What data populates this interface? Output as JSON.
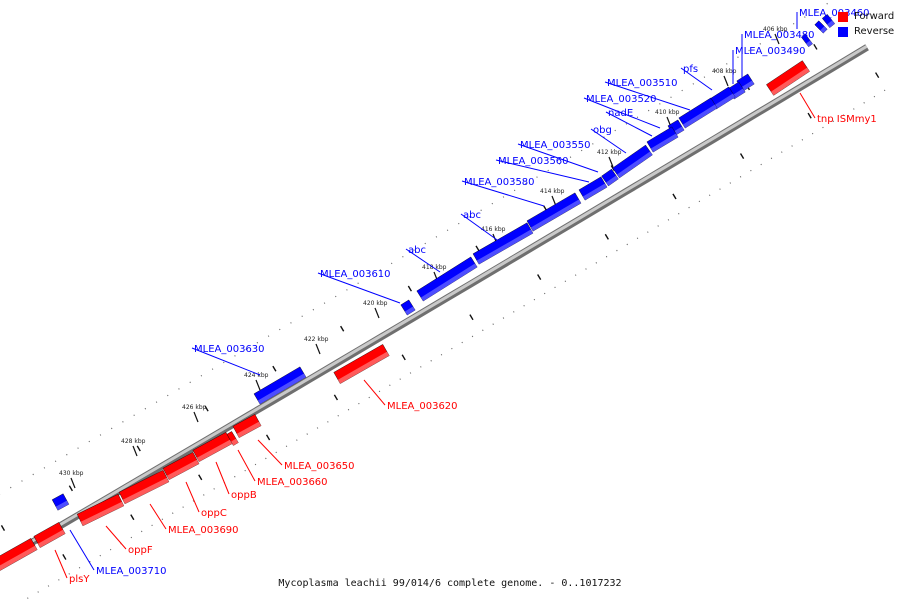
{
  "caption": "Mycoplasma leachii 99/014/6 complete genome. - 0..1017232",
  "legend": [
    {
      "label": "Forward",
      "color": "#ff0000"
    },
    {
      "label": "Reverse",
      "color": "#0000ff"
    }
  ],
  "colors": {
    "forward": "#ff0000",
    "reverse": "#0000ff",
    "backbone": "#9a9a9a"
  },
  "ticks": [
    "406 kbp",
    "408 kbp",
    "410 kbp",
    "412 kbp",
    "414 kbp",
    "416 kbp",
    "418 kbp",
    "420 kbp",
    "422 kbp",
    "424 kbp",
    "426 kbp",
    "428 kbp",
    "430 kbp"
  ],
  "forward_genes": [
    {
      "label": "tnp ISMmy1"
    },
    {
      "label": "MLEA_003620"
    },
    {
      "label": "MLEA_003650"
    },
    {
      "label": "MLEA_003660"
    },
    {
      "label": "oppB"
    },
    {
      "label": "oppC"
    },
    {
      "label": "MLEA_003690"
    },
    {
      "label": "oppF"
    },
    {
      "label": "plsY"
    }
  ],
  "reverse_genes": [
    {
      "label": "MLEA_003460"
    },
    {
      "label": "MLEA_003480"
    },
    {
      "label": "MLEA_003490"
    },
    {
      "label": "pfs"
    },
    {
      "label": "MLEA_003510"
    },
    {
      "label": "MLEA_003520"
    },
    {
      "label": "nadE"
    },
    {
      "label": "obg"
    },
    {
      "label": "MLEA_003550"
    },
    {
      "label": "MLEA_003560"
    },
    {
      "label": "MLEA_003580"
    },
    {
      "label": "abc"
    },
    {
      "label": "abc"
    },
    {
      "label": "MLEA_003610"
    },
    {
      "label": "MLEA_003630"
    },
    {
      "label": "MLEA_003710"
    }
  ]
}
